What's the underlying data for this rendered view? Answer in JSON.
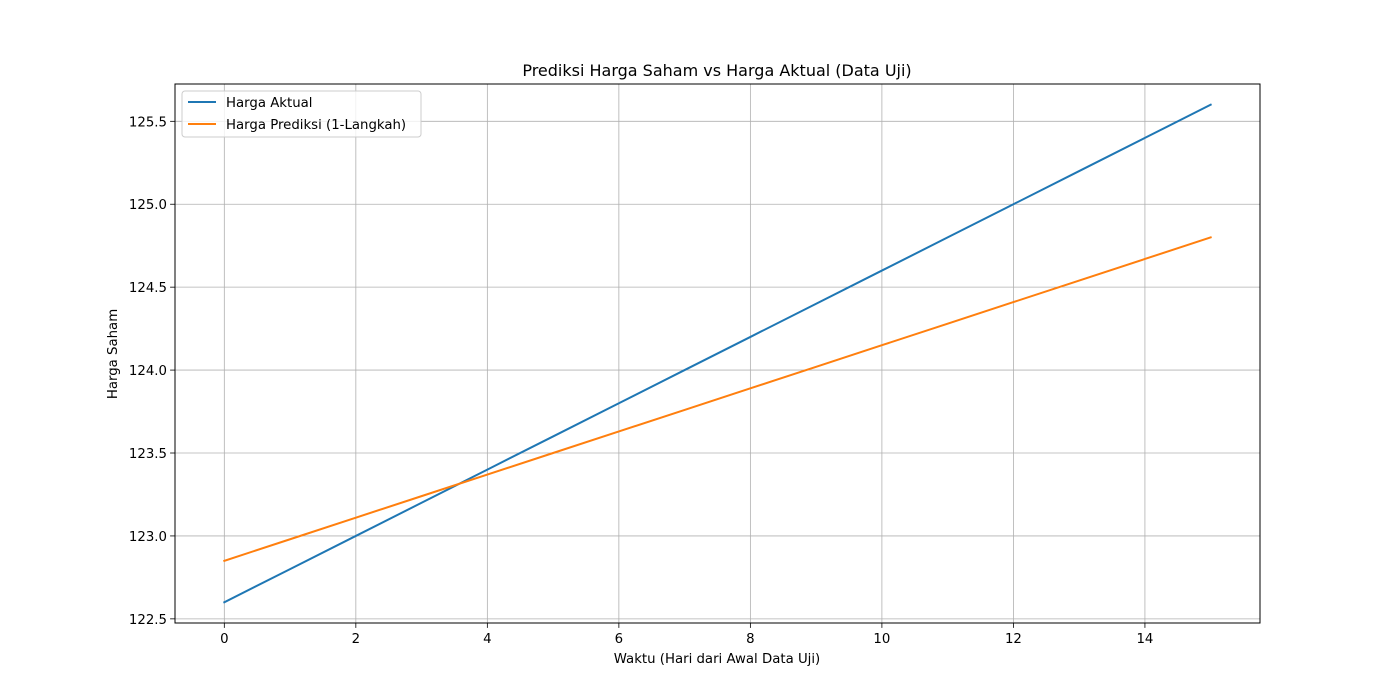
{
  "chart_data": {
    "type": "line",
    "title": "Prediksi Harga Saham vs Harga Aktual (Data Uji)",
    "xlabel": "Waktu (Hari dari Awal Data Uji)",
    "ylabel": "Harga Saham",
    "xlim": [
      -0.75,
      15.75
    ],
    "ylim": [
      122.475,
      125.725
    ],
    "xticks": [
      0,
      2,
      4,
      6,
      8,
      10,
      12,
      14
    ],
    "yticks": [
      122.5,
      123.0,
      123.5,
      124.0,
      124.5,
      125.0,
      125.5
    ],
    "xtick_labels": [
      "0",
      "2",
      "4",
      "6",
      "8",
      "10",
      "12",
      "14"
    ],
    "ytick_labels": [
      "122.5",
      "123.0",
      "123.5",
      "124.0",
      "124.5",
      "125.0",
      "125.5"
    ],
    "grid": true,
    "legend_position": "upper-left",
    "series": [
      {
        "name": "Harga Aktual",
        "color": "#1f77b4",
        "x": [
          0,
          1,
          2,
          3,
          4,
          5,
          6,
          7,
          8,
          9,
          10,
          11,
          12,
          13,
          14,
          15
        ],
        "values": [
          122.6,
          122.8,
          123.0,
          123.2,
          123.4,
          123.6,
          123.8,
          124.0,
          124.2,
          124.4,
          124.6,
          124.8,
          125.0,
          125.2,
          125.4,
          125.6
        ]
      },
      {
        "name": "Harga Prediksi (1-Langkah)",
        "color": "#ff7f0e",
        "x": [
          0,
          1,
          2,
          3,
          4,
          5,
          6,
          7,
          8,
          9,
          10,
          11,
          12,
          13,
          14,
          15
        ],
        "values": [
          122.85,
          122.98,
          123.11,
          123.24,
          123.37,
          123.5,
          123.63,
          123.76,
          123.89,
          124.02,
          124.15,
          124.28,
          124.41,
          124.54,
          124.67,
          124.8
        ]
      }
    ]
  }
}
